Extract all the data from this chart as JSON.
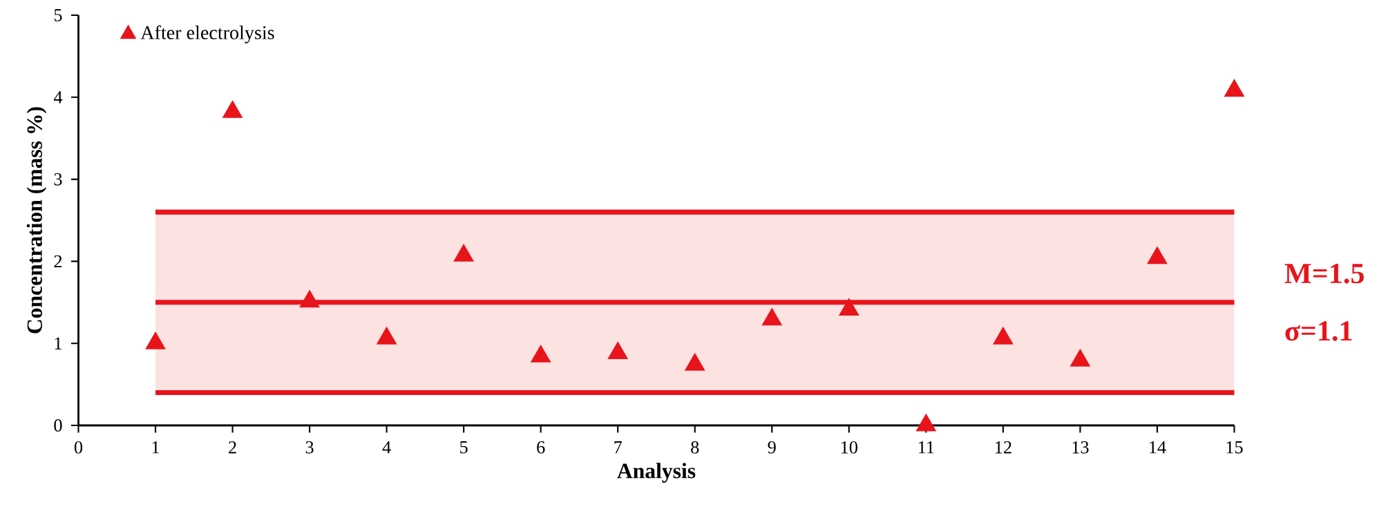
{
  "chart_data": {
    "type": "scatter",
    "xlabel": "Analysis",
    "ylabel": "Concentration (mass %)",
    "x": [
      1,
      2,
      3,
      4,
      5,
      6,
      7,
      8,
      9,
      10,
      11,
      12,
      13,
      14,
      15
    ],
    "series": [
      {
        "name": "After electrolysis",
        "color": "#e8141c",
        "values": [
          1.0,
          3.82,
          1.51,
          1.06,
          2.07,
          0.84,
          0.88,
          0.74,
          1.29,
          1.41,
          0.0,
          1.06,
          0.79,
          2.04,
          4.08
        ]
      }
    ],
    "marker": "triangle",
    "legend": "top left",
    "grid": false,
    "xlim": [
      0,
      15
    ],
    "ylim": [
      0,
      5
    ],
    "xticks": [
      0,
      1,
      2,
      3,
      4,
      5,
      6,
      7,
      8,
      9,
      10,
      11,
      12,
      13,
      14,
      15
    ],
    "yticks": [
      0,
      1,
      2,
      3,
      4,
      5
    ],
    "ref_lines": [
      {
        "axis": "y",
        "value": 1.5,
        "label": "M=1.5",
        "color": "#e8141c"
      },
      {
        "axis": "y",
        "value": 2.6,
        "color": "#e8141c"
      },
      {
        "axis": "y",
        "value": 0.4,
        "color": "#e8141c"
      }
    ],
    "bands": [
      {
        "axis": "y",
        "from": 0.4,
        "to": 2.6,
        "label": "σ=1.1",
        "color": "#fde2e2"
      }
    ]
  }
}
